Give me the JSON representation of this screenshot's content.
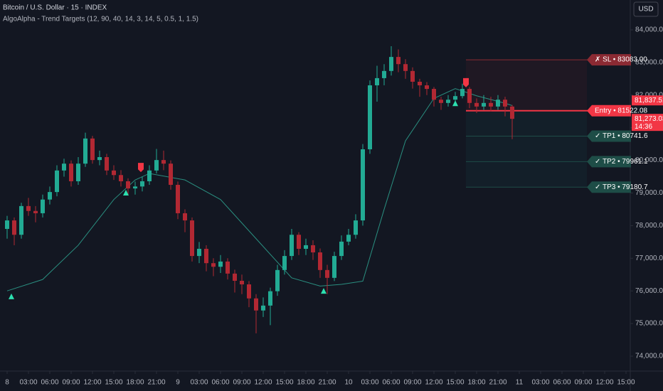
{
  "chart_data": {
    "type": "candlestick",
    "title": "Bitcoin / U.S. Dollar · 15 · INDEX",
    "subtitle": "AlgoAlpha - Trend Targets (12, 90, 40, 14, 3, 14, 5, 0.5, 1, 1.5)",
    "currency": "USD",
    "up_color": "#22ab94",
    "down_color": "#b22833",
    "x": [
      0,
      1,
      2,
      3,
      4,
      5,
      6,
      7,
      8,
      9,
      10,
      11,
      12,
      13,
      14,
      15,
      16,
      17,
      18,
      19,
      20,
      21,
      22,
      23,
      24,
      25,
      26,
      27,
      28,
      29,
      30,
      31,
      32,
      33,
      34,
      35,
      36,
      37,
      38,
      39,
      40,
      41,
      42,
      43,
      44,
      45,
      46,
      47,
      48,
      49,
      50,
      51,
      52,
      53,
      54,
      55,
      56,
      57,
      58,
      59,
      60,
      61,
      62,
      63,
      64,
      65,
      66,
      67,
      68,
      69,
      70,
      71
    ],
    "open": [
      77900,
      78160,
      77720,
      78600,
      78450,
      78380,
      78800,
      79030,
      79690,
      79900,
      79360,
      79900,
      80670,
      80010,
      80100,
      79690,
      79550,
      79360,
      79140,
      79200,
      79360,
      79690,
      80010,
      79900,
      79250,
      78380,
      78160,
      77070,
      77290,
      76850,
      76740,
      76900,
      76530,
      76310,
      76200,
      75770,
      75400,
      75550,
      75990,
      76640,
      77070,
      77720,
      77290,
      77400,
      77180,
      76640,
      76400,
      77070,
      77510,
      77720,
      78160,
      80340,
      82300,
      82520,
      82740,
      83170,
      82950,
      82740,
      82410,
      82300,
      82190,
      81860,
      81760,
      81860,
      81970,
      82190,
      81760,
      81650,
      81760,
      81650,
      81860,
      81650
    ],
    "high": [
      78300,
      78250,
      78700,
      78850,
      78600,
      78950,
      79200,
      79850,
      80050,
      80000,
      80100,
      80850,
      80750,
      80300,
      80200,
      79850,
      79700,
      79450,
      79350,
      79500,
      79850,
      80350,
      80300,
      80000,
      79350,
      78500,
      78250,
      77500,
      77400,
      77000,
      77100,
      77000,
      76650,
      76500,
      76300,
      75900,
      75800,
      76100,
      76800,
      77250,
      77900,
      77800,
      77600,
      77550,
      77300,
      76800,
      77200,
      77700,
      77900,
      78350,
      80500,
      82450,
      82900,
      82950,
      83500,
      83400,
      83100,
      82850,
      82500,
      82400,
      82250,
      81950,
      82000,
      82100,
      82350,
      82250,
      81900,
      82000,
      81950,
      82000,
      81950,
      81700
    ],
    "low": [
      77600,
      77400,
      77600,
      78300,
      78100,
      78250,
      78650,
      78900,
      79500,
      79200,
      79250,
      79800,
      79900,
      79850,
      79550,
      79400,
      79200,
      78950,
      78950,
      79050,
      79250,
      79600,
      79700,
      79100,
      78200,
      77800,
      76900,
      76850,
      76600,
      76450,
      76550,
      76350,
      75950,
      75900,
      75500,
      74700,
      75200,
      74950,
      75850,
      76500,
      76950,
      77100,
      77100,
      76950,
      76400,
      75900,
      76300,
      76950,
      77400,
      77600,
      78000,
      80200,
      81800,
      82300,
      82600,
      82700,
      82500,
      82200,
      81950,
      82000,
      81650,
      81550,
      81650,
      81750,
      81900,
      81600,
      81450,
      81550,
      81500,
      81550,
      81350,
      80650
    ],
    "close": [
      78160,
      77720,
      78600,
      78450,
      78380,
      78800,
      79030,
      79690,
      79900,
      79360,
      79900,
      80670,
      80010,
      80100,
      79690,
      79550,
      79360,
      79140,
      79200,
      79360,
      79690,
      80010,
      79900,
      79250,
      78380,
      78160,
      77070,
      77290,
      76850,
      76740,
      76900,
      76530,
      76310,
      76200,
      75770,
      75400,
      75550,
      75990,
      76640,
      77070,
      77720,
      77290,
      77400,
      77180,
      76640,
      76400,
      77070,
      77510,
      77720,
      78160,
      80340,
      82300,
      82520,
      82740,
      83170,
      82950,
      82740,
      82410,
      82300,
      82190,
      81860,
      81760,
      81860,
      81970,
      82190,
      81760,
      81650,
      81760,
      81650,
      81860,
      81650,
      81273.03
    ],
    "trend": {
      "color": "#2a8f80",
      "x": [
        0,
        5,
        10,
        15,
        18,
        20,
        25,
        30,
        35,
        40,
        44,
        47,
        50,
        53,
        56,
        60,
        63,
        66,
        70,
        71
      ],
      "values": [
        76000,
        76350,
        77400,
        78800,
        79400,
        79600,
        79400,
        78800,
        77600,
        76400,
        76150,
        76200,
        76300,
        78500,
        80600,
        81900,
        82200,
        81980,
        81750,
        81680
      ]
    },
    "signals": [
      {
        "x": 0.6,
        "value": 75810,
        "direction": "up"
      },
      {
        "x": 16.7,
        "value": 78990,
        "direction": "up"
      },
      {
        "x": 18.8,
        "value": 79770,
        "direction": "down"
      },
      {
        "x": 44.5,
        "value": 75980,
        "direction": "up"
      },
      {
        "x": 63,
        "value": 81730,
        "direction": "up"
      },
      {
        "x": 64.5,
        "value": 82370,
        "direction": "down"
      }
    ],
    "levels_start": 64.5,
    "levels": [
      {
        "value": 83083,
        "label": "✗ SL • 83083.00",
        "color": "#8b2a33"
      },
      {
        "value": 81522.08,
        "label": "Entry • 81522.08",
        "color": "#f23645"
      },
      {
        "value": 80741.6,
        "label": "✓ TP1 • 80741.6",
        "color": "#1e4d47"
      },
      {
        "value": 79961.1,
        "label": "✓ TP2 • 79961.1",
        "color": "#1e4d47"
      },
      {
        "value": 79180.7,
        "label": "✓ TP3 • 79180.7",
        "color": "#1e4d47"
      }
    ],
    "price_badges": [
      {
        "value": 81837.51,
        "label": "81,837.51",
        "color": "#f23645"
      },
      {
        "value": 81273.03,
        "label": "81,273.03",
        "color": "#f23645"
      }
    ],
    "countdown": "14:36",
    "xlim": [
      -1,
      87.5
    ],
    "ylim": [
      73586,
      84915
    ],
    "yticks": [
      {
        "value": 74000,
        "label": "74,000.00"
      },
      {
        "value": 75000,
        "label": "75,000.00"
      },
      {
        "value": 76000,
        "label": "76,000.00"
      },
      {
        "value": 77000,
        "label": "77,000.00"
      },
      {
        "value": 78000,
        "label": "78,000.00"
      },
      {
        "value": 79000,
        "label": "79,000.00"
      },
      {
        "value": 80000,
        "label": "80,000.00"
      },
      {
        "value": 81000,
        "label": "81,000.00"
      },
      {
        "value": 82000,
        "label": "82,000.00"
      },
      {
        "value": 83000,
        "label": "83,000.00"
      },
      {
        "value": 84000,
        "label": "84,000.00"
      }
    ],
    "xticks": [
      {
        "value": 0,
        "label": "8"
      },
      {
        "value": 3,
        "label": "03:00"
      },
      {
        "value": 6,
        "label": "06:00"
      },
      {
        "value": 9,
        "label": "09:00"
      },
      {
        "value": 12,
        "label": "12:00"
      },
      {
        "value": 15,
        "label": "15:00"
      },
      {
        "value": 18,
        "label": "18:00"
      },
      {
        "value": 21,
        "label": "21:00"
      },
      {
        "value": 24,
        "label": "9"
      },
      {
        "value": 27,
        "label": "03:00"
      },
      {
        "value": 30,
        "label": "06:00"
      },
      {
        "value": 33,
        "label": "09:00"
      },
      {
        "value": 36,
        "label": "12:00"
      },
      {
        "value": 39,
        "label": "15:00"
      },
      {
        "value": 42,
        "label": "18:00"
      },
      {
        "value": 45,
        "label": "21:00"
      },
      {
        "value": 48,
        "label": "10"
      },
      {
        "value": 51,
        "label": "03:00"
      },
      {
        "value": 54,
        "label": "06:00"
      },
      {
        "value": 57,
        "label": "09:00"
      },
      {
        "value": 60,
        "label": "12:00"
      },
      {
        "value": 63,
        "label": "15:00"
      },
      {
        "value": 66,
        "label": "18:00"
      },
      {
        "value": 69,
        "label": "21:00"
      },
      {
        "value": 72,
        "label": "11"
      },
      {
        "value": 75,
        "label": "03:00"
      },
      {
        "value": 78,
        "label": "06:00"
      },
      {
        "value": 81,
        "label": "09:00"
      },
      {
        "value": 84,
        "label": "12:00"
      },
      {
        "value": 87,
        "label": "15:00"
      }
    ]
  }
}
